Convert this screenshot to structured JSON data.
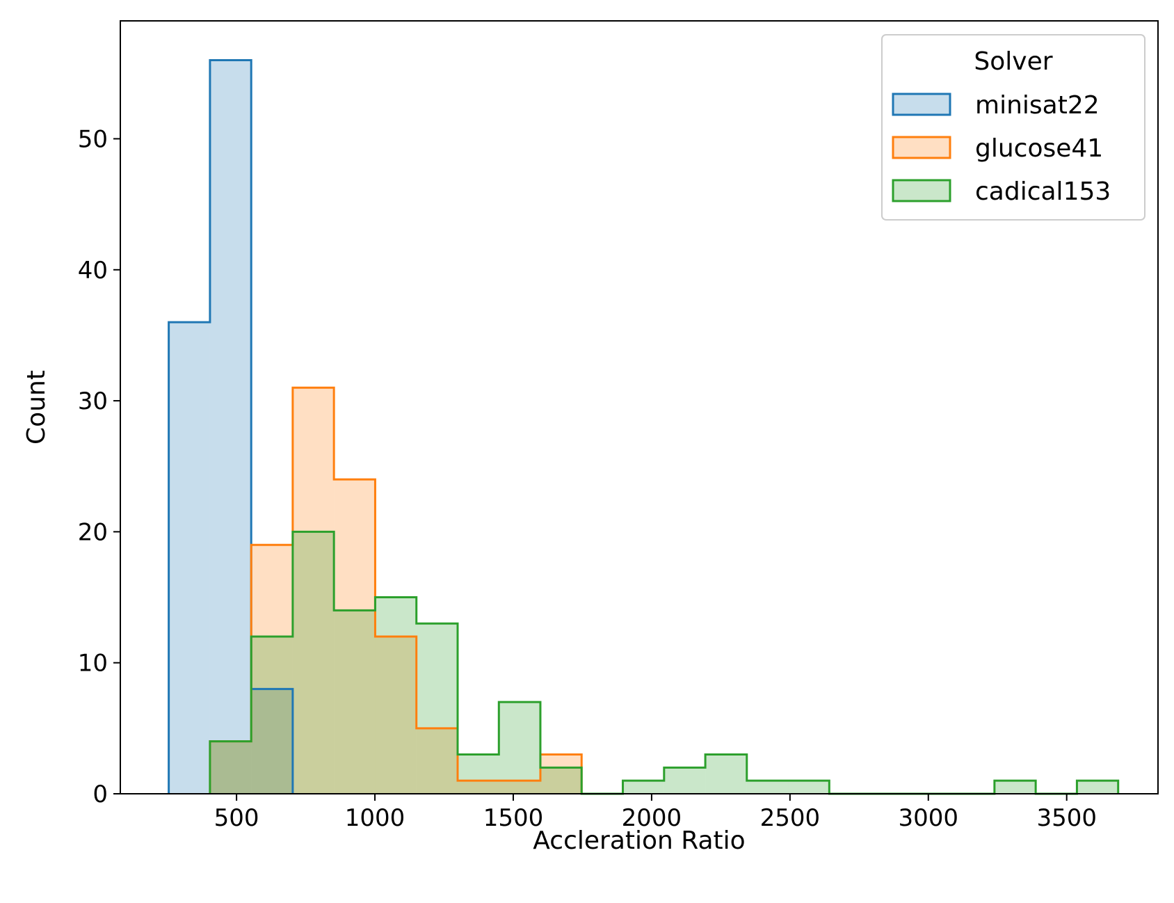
{
  "chart_data": {
    "type": "histogram",
    "xlabel": "Accleration Ratio",
    "ylabel": "Count",
    "xlim": [
      80,
      3830
    ],
    "ylim": [
      0,
      59
    ],
    "xticks": [
      500,
      1000,
      1500,
      2000,
      2500,
      3000,
      3500
    ],
    "yticks": [
      0,
      10,
      20,
      30,
      40,
      50
    ],
    "grid": false,
    "bin_edges": [
      255,
      404,
      553,
      703,
      852,
      1001,
      1150,
      1299,
      1448,
      1598,
      1747,
      1896,
      2045,
      2194,
      2344,
      2493,
      2642,
      2791,
      2940,
      3089,
      3239,
      3388,
      3537,
      3686
    ],
    "legend": {
      "title": "Solver",
      "position": "top-right"
    },
    "series": [
      {
        "name": "minisat22",
        "color": "#1f77b4",
        "values": [
          36,
          56,
          8,
          0,
          0,
          0,
          0,
          0,
          0,
          0,
          0,
          0,
          0,
          0,
          0,
          0,
          0,
          0,
          0,
          0,
          0,
          0,
          0
        ]
      },
      {
        "name": "glucose41",
        "color": "#ff7f0e",
        "values": [
          0,
          4,
          19,
          31,
          24,
          12,
          5,
          1,
          1,
          3,
          0,
          0,
          0,
          0,
          0,
          0,
          0,
          0,
          0,
          0,
          0,
          0,
          0
        ]
      },
      {
        "name": "cadical153",
        "color": "#2ca02c",
        "values": [
          0,
          4,
          12,
          20,
          14,
          15,
          13,
          3,
          7,
          2,
          0,
          1,
          2,
          3,
          1,
          1,
          0,
          0,
          0,
          0,
          1,
          0,
          1
        ]
      }
    ]
  }
}
